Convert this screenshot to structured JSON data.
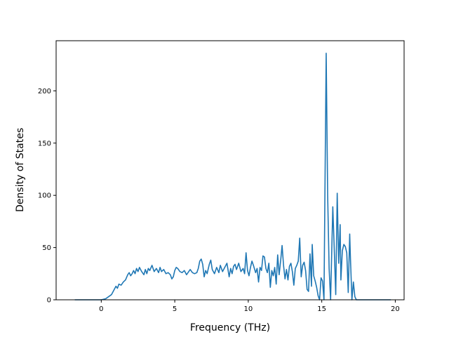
{
  "chart_data": {
    "type": "line",
    "title": "",
    "xlabel": "Frequency (THz)",
    "ylabel": "Density of States",
    "xlim": [
      -3.07,
      20.6
    ],
    "ylim": [
      0,
      248
    ],
    "xticks": [
      0,
      5,
      10,
      15,
      20
    ],
    "yticks": [
      0,
      50,
      100,
      150,
      200
    ],
    "grid": false,
    "series": [
      {
        "color": "#1f77b4",
        "points": [
          [
            -1.8,
            0
          ],
          [
            -1.0,
            0
          ],
          [
            0.0,
            0
          ],
          [
            0.3,
            1
          ],
          [
            0.5,
            3
          ],
          [
            0.7,
            5
          ],
          [
            0.85,
            9
          ],
          [
            1.0,
            13
          ],
          [
            1.1,
            11
          ],
          [
            1.2,
            15
          ],
          [
            1.35,
            14
          ],
          [
            1.5,
            17
          ],
          [
            1.65,
            19
          ],
          [
            1.8,
            24
          ],
          [
            1.9,
            26
          ],
          [
            2.0,
            23
          ],
          [
            2.1,
            25
          ],
          [
            2.2,
            28
          ],
          [
            2.3,
            25
          ],
          [
            2.4,
            30
          ],
          [
            2.5,
            27
          ],
          [
            2.6,
            31
          ],
          [
            2.75,
            27
          ],
          [
            2.9,
            24
          ],
          [
            3.0,
            29
          ],
          [
            3.1,
            25
          ],
          [
            3.2,
            30
          ],
          [
            3.3,
            28
          ],
          [
            3.45,
            33
          ],
          [
            3.6,
            27
          ],
          [
            3.75,
            30
          ],
          [
            3.9,
            26
          ],
          [
            4.0,
            31
          ],
          [
            4.1,
            27
          ],
          [
            4.25,
            29
          ],
          [
            4.4,
            25
          ],
          [
            4.55,
            26
          ],
          [
            4.7,
            24
          ],
          [
            4.8,
            20
          ],
          [
            4.9,
            22
          ],
          [
            5.0,
            28
          ],
          [
            5.1,
            31
          ],
          [
            5.2,
            30
          ],
          [
            5.35,
            27
          ],
          [
            5.5,
            26
          ],
          [
            5.65,
            28
          ],
          [
            5.8,
            24
          ],
          [
            5.95,
            27
          ],
          [
            6.05,
            29
          ],
          [
            6.2,
            26
          ],
          [
            6.35,
            25
          ],
          [
            6.5,
            26
          ],
          [
            6.6,
            30
          ],
          [
            6.7,
            37
          ],
          [
            6.8,
            39
          ],
          [
            6.9,
            34
          ],
          [
            7.0,
            22
          ],
          [
            7.1,
            28
          ],
          [
            7.2,
            25
          ],
          [
            7.35,
            34
          ],
          [
            7.45,
            38
          ],
          [
            7.55,
            29
          ],
          [
            7.7,
            25
          ],
          [
            7.85,
            31
          ],
          [
            8.0,
            26
          ],
          [
            8.1,
            33
          ],
          [
            8.25,
            27
          ],
          [
            8.4,
            31
          ],
          [
            8.55,
            35
          ],
          [
            8.7,
            22
          ],
          [
            8.8,
            30
          ],
          [
            8.9,
            25
          ],
          [
            9.0,
            32
          ],
          [
            9.1,
            34
          ],
          [
            9.2,
            29
          ],
          [
            9.35,
            35
          ],
          [
            9.5,
            27
          ],
          [
            9.65,
            30
          ],
          [
            9.75,
            25
          ],
          [
            9.85,
            45
          ],
          [
            9.95,
            28
          ],
          [
            10.05,
            23
          ],
          [
            10.15,
            31
          ],
          [
            10.25,
            37
          ],
          [
            10.35,
            33
          ],
          [
            10.5,
            26
          ],
          [
            10.6,
            30
          ],
          [
            10.7,
            17
          ],
          [
            10.8,
            31
          ],
          [
            10.9,
            28
          ],
          [
            11.0,
            42
          ],
          [
            11.1,
            41
          ],
          [
            11.2,
            30
          ],
          [
            11.3,
            26
          ],
          [
            11.4,
            35
          ],
          [
            11.5,
            12
          ],
          [
            11.6,
            28
          ],
          [
            11.7,
            23
          ],
          [
            11.8,
            31
          ],
          [
            11.9,
            15
          ],
          [
            12.0,
            43
          ],
          [
            12.1,
            24
          ],
          [
            12.2,
            37
          ],
          [
            12.3,
            52
          ],
          [
            12.4,
            33
          ],
          [
            12.5,
            20
          ],
          [
            12.6,
            29
          ],
          [
            12.7,
            19
          ],
          [
            12.8,
            32
          ],
          [
            12.9,
            35
          ],
          [
            13.0,
            27
          ],
          [
            13.1,
            14
          ],
          [
            13.2,
            30
          ],
          [
            13.3,
            33
          ],
          [
            13.4,
            37
          ],
          [
            13.5,
            59
          ],
          [
            13.6,
            22
          ],
          [
            13.7,
            33
          ],
          [
            13.8,
            36
          ],
          [
            13.9,
            28
          ],
          [
            14.0,
            10
          ],
          [
            14.1,
            8
          ],
          [
            14.2,
            44
          ],
          [
            14.3,
            13
          ],
          [
            14.35,
            53
          ],
          [
            14.45,
            23
          ],
          [
            14.55,
            18
          ],
          [
            14.65,
            12
          ],
          [
            14.75,
            4
          ],
          [
            14.85,
            0
          ],
          [
            14.95,
            21
          ],
          [
            15.05,
            18
          ],
          [
            15.15,
            0
          ],
          [
            15.3,
            236
          ],
          [
            15.4,
            100
          ],
          [
            15.5,
            30
          ],
          [
            15.6,
            0
          ],
          [
            15.75,
            89
          ],
          [
            15.85,
            48
          ],
          [
            15.95,
            5
          ],
          [
            16.05,
            102
          ],
          [
            16.15,
            35
          ],
          [
            16.25,
            72
          ],
          [
            16.3,
            19
          ],
          [
            16.4,
            47
          ],
          [
            16.5,
            53
          ],
          [
            16.6,
            51
          ],
          [
            16.7,
            45
          ],
          [
            16.8,
            7
          ],
          [
            16.9,
            63
          ],
          [
            16.95,
            40
          ],
          [
            17.05,
            0
          ],
          [
            17.15,
            17
          ],
          [
            17.25,
            3
          ],
          [
            17.35,
            0
          ],
          [
            17.5,
            0
          ],
          [
            18.0,
            0
          ],
          [
            19.0,
            0
          ],
          [
            19.7,
            0
          ]
        ]
      }
    ]
  }
}
